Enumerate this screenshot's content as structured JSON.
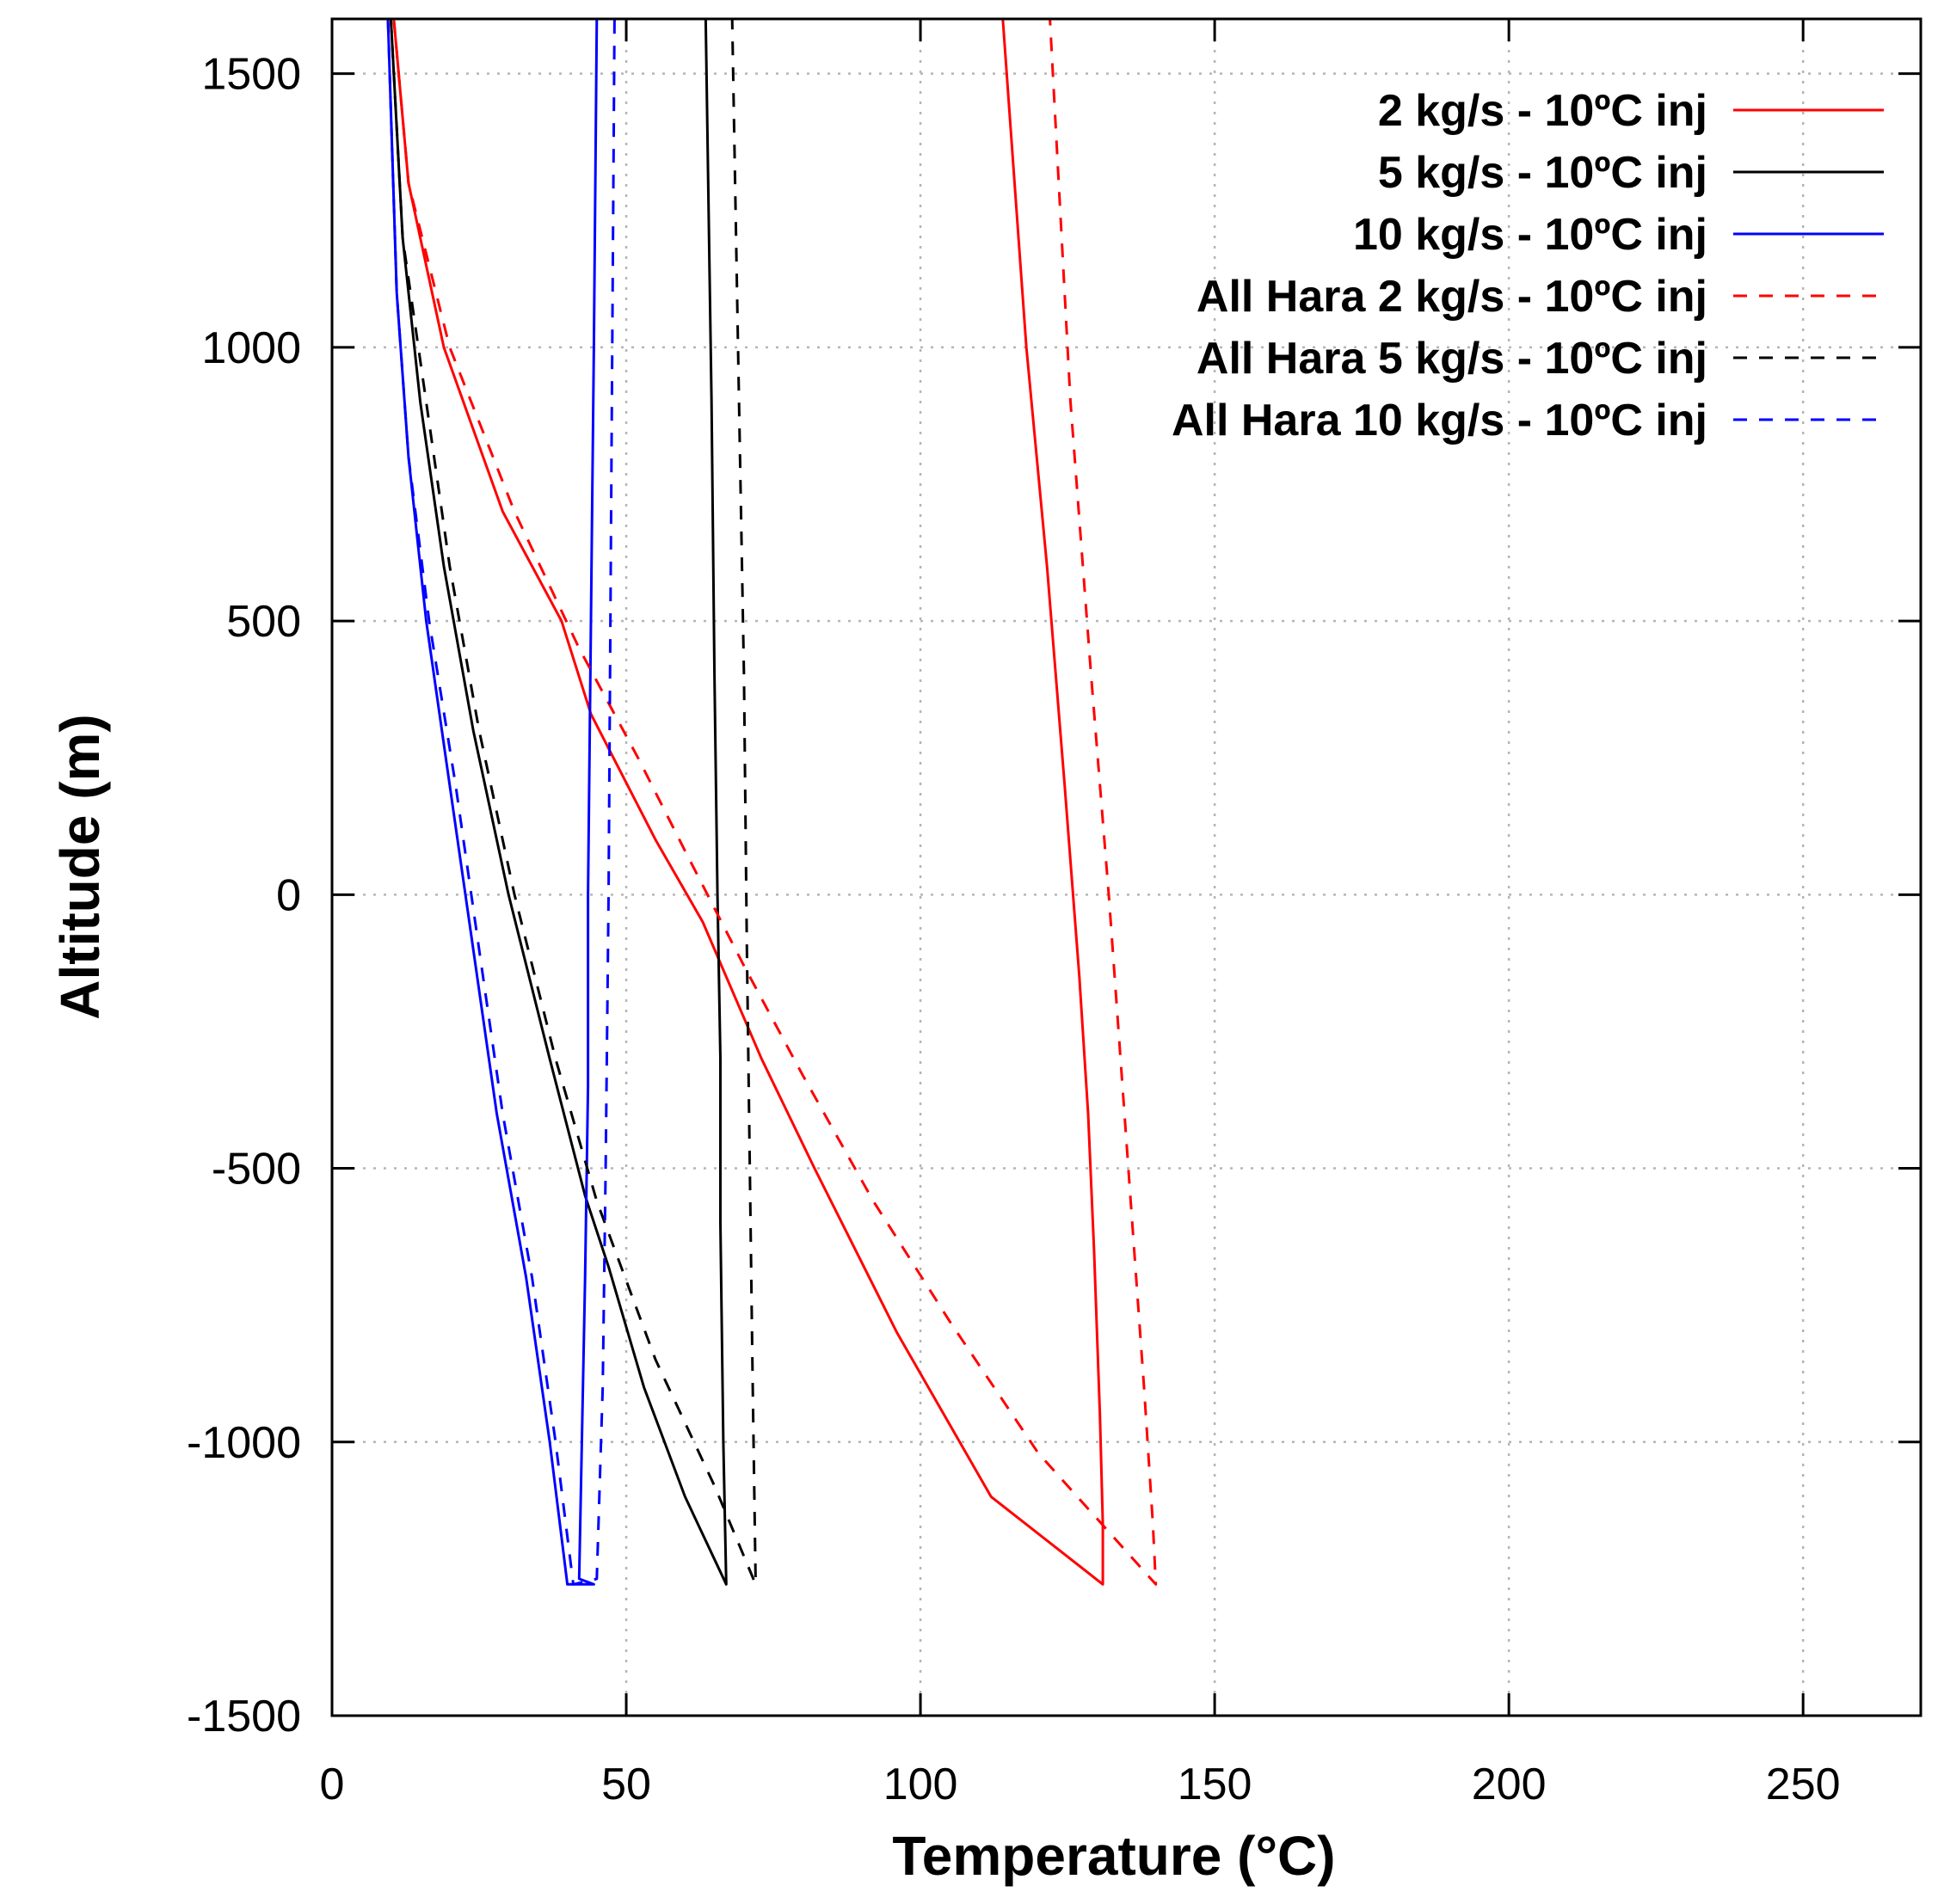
{
  "chart_data": {
    "type": "line",
    "title": "",
    "xlabel": "Temperature (°C)",
    "ylabel": "Altitude (m)",
    "xlim": [
      0,
      270
    ],
    "ylim": [
      -1500,
      1600
    ],
    "xticks": [
      0,
      50,
      100,
      150,
      200,
      250
    ],
    "yticks": [
      -1500,
      -1000,
      -500,
      0,
      500,
      1000,
      1500
    ],
    "xtick_labels": [
      "0",
      "50",
      "100",
      "150",
      "200",
      "250"
    ],
    "ytick_labels": [
      "-1500",
      "-1000",
      "-500",
      "0",
      "500",
      "1000",
      "1500"
    ],
    "grid": true,
    "legend_position": "top-right",
    "series": [
      {
        "name": "2 kg/s - 10ºC inj",
        "color": "#ff0000",
        "dash": "solid",
        "points": [
          [
            10.5,
            1600
          ],
          [
            13,
            1300
          ],
          [
            19,
            1000
          ],
          [
            29,
            700
          ],
          [
            39,
            500
          ],
          [
            44,
            330
          ],
          [
            55,
            100
          ],
          [
            63,
            -50
          ],
          [
            67,
            -150
          ],
          [
            73,
            -300
          ],
          [
            82,
            -500
          ],
          [
            96,
            -800
          ],
          [
            112,
            -1100
          ],
          [
            131,
            -1260
          ],
          [
            131,
            -1150
          ],
          [
            130.5,
            -950
          ],
          [
            129.5,
            -650
          ],
          [
            128.5,
            -400
          ],
          [
            127,
            -150
          ],
          [
            124.5,
            200
          ],
          [
            121.5,
            600
          ],
          [
            118,
            1000
          ],
          [
            114,
            1600
          ]
        ]
      },
      {
        "name": "5 kg/s - 10ºC inj",
        "color": "#000000",
        "dash": "solid",
        "points": [
          [
            10,
            1600
          ],
          [
            12,
            1200
          ],
          [
            15,
            900
          ],
          [
            19,
            600
          ],
          [
            24,
            300
          ],
          [
            30,
            0
          ],
          [
            37,
            -300
          ],
          [
            43,
            -550
          ],
          [
            47,
            -680
          ],
          [
            53,
            -900
          ],
          [
            60,
            -1100
          ],
          [
            67,
            -1260
          ],
          [
            66.5,
            -1000
          ],
          [
            66,
            -600
          ],
          [
            66,
            -300
          ],
          [
            65.5,
            0
          ],
          [
            65,
            400
          ],
          [
            64.5,
            900
          ],
          [
            63.5,
            1600
          ]
        ]
      },
      {
        "name": "10 kg/s - 10ºC inj",
        "color": "#0000ff",
        "dash": "solid",
        "points": [
          [
            9.5,
            1600
          ],
          [
            11,
            1100
          ],
          [
            13,
            800
          ],
          [
            16,
            500
          ],
          [
            20,
            200
          ],
          [
            24,
            -100
          ],
          [
            28,
            -400
          ],
          [
            33,
            -700
          ],
          [
            37,
            -1000
          ],
          [
            40,
            -1260
          ],
          [
            44.5,
            -1260
          ],
          [
            42,
            -1250
          ],
          [
            43,
            -700
          ],
          [
            43.5,
            -350
          ],
          [
            43.5,
            0
          ],
          [
            44,
            500
          ],
          [
            44.5,
            1000
          ],
          [
            45,
            1600
          ]
        ]
      },
      {
        "name": "All Hara  2 kg/s - 10ºC inj",
        "color": "#ff0000",
        "dash": "dashed",
        "points": [
          [
            10.5,
            1600
          ],
          [
            13,
            1300
          ],
          [
            20,
            1000
          ],
          [
            31,
            700
          ],
          [
            42,
            450
          ],
          [
            52,
            250
          ],
          [
            60,
            80
          ],
          [
            70,
            -130
          ],
          [
            80,
            -330
          ],
          [
            92,
            -560
          ],
          [
            105,
            -780
          ],
          [
            120,
            -1020
          ],
          [
            140,
            -1260
          ],
          [
            139.5,
            -1150
          ],
          [
            138,
            -900
          ],
          [
            136,
            -600
          ],
          [
            134,
            -300
          ],
          [
            132,
            0
          ],
          [
            129,
            400
          ],
          [
            125.5,
            900
          ],
          [
            122,
            1600
          ]
        ]
      },
      {
        "name": "All Hara 5 kg/s - 10ºC inj",
        "color": "#000000",
        "dash": "dashed",
        "points": [
          [
            10,
            1600
          ],
          [
            12,
            1200
          ],
          [
            16,
            900
          ],
          [
            20,
            600
          ],
          [
            25,
            300
          ],
          [
            31,
            0
          ],
          [
            38,
            -300
          ],
          [
            45,
            -560
          ],
          [
            55,
            -850
          ],
          [
            65,
            -1080
          ],
          [
            72,
            -1260
          ],
          [
            71.5,
            -900
          ],
          [
            71,
            -500
          ],
          [
            70.5,
            -100
          ],
          [
            70,
            400
          ],
          [
            69,
            1000
          ],
          [
            68,
            1600
          ]
        ]
      },
      {
        "name": "All Hara 10 kg/s - 10ºC inj",
        "color": "#0000ff",
        "dash": "dashed",
        "points": [
          [
            9.5,
            1600
          ],
          [
            11,
            1100
          ],
          [
            13,
            800
          ],
          [
            16.5,
            500
          ],
          [
            21,
            200
          ],
          [
            25,
            -100
          ],
          [
            29,
            -400
          ],
          [
            34,
            -700
          ],
          [
            38,
            -1000
          ],
          [
            41,
            -1260
          ],
          [
            45,
            -1250
          ],
          [
            46,
            -900
          ],
          [
            46.5,
            -500
          ],
          [
            47,
            0
          ],
          [
            47.5,
            800
          ],
          [
            48,
            1600
          ]
        ]
      }
    ]
  }
}
